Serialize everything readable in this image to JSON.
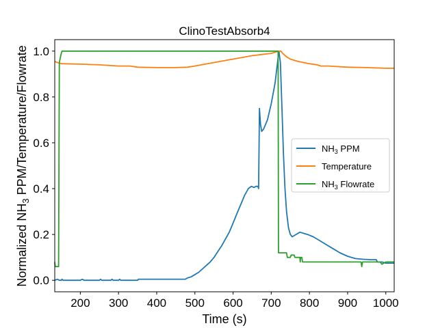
{
  "chart_data": {
    "type": "line",
    "title": "ClinoTestAbsorb4",
    "xlabel": "Time (s)",
    "ylabel_parts": [
      "Normalized NH",
      "3",
      " PPM/Temperature/Flowrate"
    ],
    "xlim": [
      133,
      1022
    ],
    "ylim": [
      -0.05,
      1.05
    ],
    "x_ticks": [
      200,
      300,
      400,
      500,
      600,
      700,
      800,
      900,
      1000
    ],
    "y_ticks": [
      0.0,
      0.2,
      0.4,
      0.6,
      0.8,
      1.0
    ],
    "grid": false,
    "legend_position": "center-right",
    "series": [
      {
        "name_parts": [
          "NH",
          "3",
          " PPM"
        ],
        "color": "#1f77b4",
        "points": [
          [
            133,
            0.0
          ],
          [
            140,
            0.005
          ],
          [
            145,
            0.0
          ],
          [
            150,
            0.0
          ],
          [
            152,
            0.005
          ],
          [
            155,
            0.0
          ],
          [
            200,
            0.0
          ],
          [
            205,
            0.005
          ],
          [
            210,
            0.0
          ],
          [
            250,
            0.0
          ],
          [
            253,
            0.005
          ],
          [
            256,
            0.0
          ],
          [
            280,
            0.0
          ],
          [
            283,
            0.005
          ],
          [
            286,
            0.0
          ],
          [
            300,
            0.0
          ],
          [
            303,
            0.005
          ],
          [
            306,
            0.0
          ],
          [
            350,
            0.0
          ],
          [
            352,
            0.005
          ],
          [
            400,
            0.005
          ],
          [
            450,
            0.005
          ],
          [
            475,
            0.005
          ],
          [
            480,
            0.01
          ],
          [
            490,
            0.015
          ],
          [
            500,
            0.025
          ],
          [
            510,
            0.035
          ],
          [
            520,
            0.05
          ],
          [
            530,
            0.065
          ],
          [
            540,
            0.08
          ],
          [
            550,
            0.1
          ],
          [
            560,
            0.125
          ],
          [
            570,
            0.15
          ],
          [
            580,
            0.18
          ],
          [
            590,
            0.21
          ],
          [
            600,
            0.25
          ],
          [
            610,
            0.29
          ],
          [
            620,
            0.33
          ],
          [
            630,
            0.37
          ],
          [
            640,
            0.4
          ],
          [
            648,
            0.41
          ],
          [
            655,
            0.405
          ],
          [
            660,
            0.41
          ],
          [
            665,
            0.41
          ],
          [
            667,
            0.4
          ],
          [
            669,
            0.75
          ],
          [
            672,
            0.68
          ],
          [
            675,
            0.65
          ],
          [
            680,
            0.66
          ],
          [
            690,
            0.7
          ],
          [
            700,
            0.77
          ],
          [
            710,
            0.86
          ],
          [
            715,
            0.93
          ],
          [
            720,
            1.0
          ],
          [
            724,
            0.95
          ],
          [
            728,
            0.75
          ],
          [
            732,
            0.55
          ],
          [
            736,
            0.4
          ],
          [
            740,
            0.3
          ],
          [
            745,
            0.23
          ],
          [
            750,
            0.2
          ],
          [
            755,
            0.19
          ],
          [
            765,
            0.2
          ],
          [
            775,
            0.21
          ],
          [
            785,
            0.205
          ],
          [
            795,
            0.2
          ],
          [
            810,
            0.19
          ],
          [
            825,
            0.175
          ],
          [
            840,
            0.16
          ],
          [
            860,
            0.14
          ],
          [
            880,
            0.12
          ],
          [
            900,
            0.105
          ],
          [
            920,
            0.095
          ],
          [
            940,
            0.092
          ],
          [
            960,
            0.09
          ],
          [
            975,
            0.09
          ],
          [
            978,
            0.08
          ],
          [
            990,
            0.08
          ],
          [
            1000,
            0.075
          ],
          [
            1010,
            0.075
          ],
          [
            1022,
            0.075
          ]
        ]
      },
      {
        "name_parts": [
          "Temperature",
          "",
          ""
        ],
        "color": "#ff7f0e",
        "points": [
          [
            133,
            0.955
          ],
          [
            140,
            0.95
          ],
          [
            150,
            0.945
          ],
          [
            200,
            0.943
          ],
          [
            250,
            0.94
          ],
          [
            300,
            0.935
          ],
          [
            330,
            0.935
          ],
          [
            350,
            0.93
          ],
          [
            400,
            0.928
          ],
          [
            450,
            0.928
          ],
          [
            480,
            0.93
          ],
          [
            500,
            0.935
          ],
          [
            550,
            0.95
          ],
          [
            600,
            0.965
          ],
          [
            650,
            0.98
          ],
          [
            700,
            0.99
          ],
          [
            720,
            1.0
          ],
          [
            725,
            1.0
          ],
          [
            730,
            0.99
          ],
          [
            740,
            0.975
          ],
          [
            750,
            0.965
          ],
          [
            770,
            0.955
          ],
          [
            800,
            0.945
          ],
          [
            820,
            0.94
          ],
          [
            830,
            0.935
          ],
          [
            850,
            0.935
          ],
          [
            900,
            0.93
          ],
          [
            950,
            0.928
          ],
          [
            1000,
            0.925
          ],
          [
            1022,
            0.925
          ]
        ]
      },
      {
        "name_parts": [
          "NH",
          "3",
          " Flowrate"
        ],
        "color": "#2ca02c",
        "points": [
          [
            133,
            0.08
          ],
          [
            134,
            0.06
          ],
          [
            143,
            0.06
          ],
          [
            145,
            0.95
          ],
          [
            150,
            0.99
          ],
          [
            152,
            1.0
          ],
          [
            718,
            1.0
          ],
          [
            719,
            0.12
          ],
          [
            740,
            0.12
          ],
          [
            742,
            0.1
          ],
          [
            750,
            0.1
          ],
          [
            752,
            0.11
          ],
          [
            760,
            0.11
          ],
          [
            762,
            0.1
          ],
          [
            775,
            0.1
          ],
          [
            776,
            0.08
          ],
          [
            777,
            0.1
          ],
          [
            780,
            0.1
          ],
          [
            782,
            0.08
          ],
          [
            880,
            0.08
          ],
          [
            900,
            0.08
          ],
          [
            935,
            0.08
          ],
          [
            937,
            0.06
          ],
          [
            939,
            0.08
          ],
          [
            980,
            0.08
          ],
          [
            985,
            0.08
          ],
          [
            990,
            0.07
          ],
          [
            1000,
            0.08
          ],
          [
            1022,
            0.08
          ]
        ]
      }
    ]
  }
}
